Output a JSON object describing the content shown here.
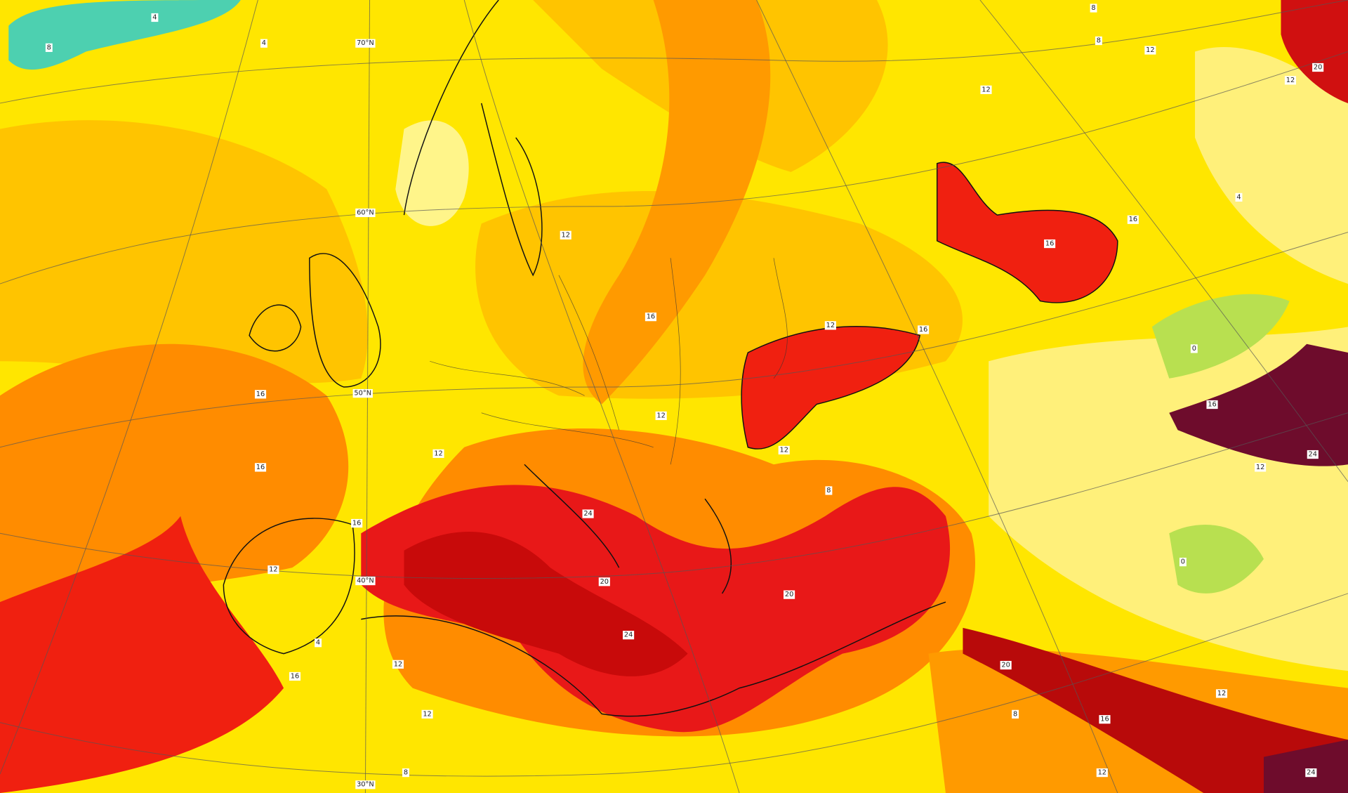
{
  "latitude_labels": [
    "70°N",
    "60°N",
    "50°N",
    "40°N",
    "30°N"
  ],
  "contour_labels": [
    16,
    16,
    12,
    16,
    12,
    4,
    16,
    12,
    12,
    8,
    24,
    20,
    24,
    16,
    12,
    12,
    12,
    16,
    12,
    8,
    20,
    16,
    16,
    12,
    8,
    8,
    12,
    20,
    12,
    4,
    0,
    16,
    12,
    24,
    0,
    12,
    16,
    8,
    20,
    12,
    24,
    8,
    4,
    4
  ]
}
